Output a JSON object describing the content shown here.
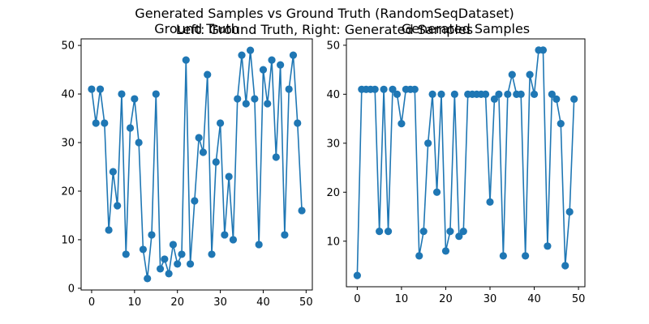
{
  "figure": {
    "title": "Generated Samples vs Ground Truth (RandomSeqDataset)",
    "subtitle": "Left: Ground Truth, Right: Generated Samples"
  },
  "chart_data": [
    {
      "type": "line",
      "title": "Ground Truth",
      "xlabel": "",
      "ylabel": "",
      "xlim": [
        -2.45,
        51.45
      ],
      "ylim": [
        -0.35,
        51.35
      ],
      "xticks": [
        0,
        10,
        20,
        30,
        40,
        50
      ],
      "yticks": [
        0,
        10,
        20,
        30,
        40,
        50
      ],
      "grid": false,
      "marker": "circle",
      "color": "#1f77b4",
      "x": [
        0,
        1,
        2,
        3,
        4,
        5,
        6,
        7,
        8,
        9,
        10,
        11,
        12,
        13,
        14,
        15,
        16,
        17,
        18,
        19,
        20,
        21,
        22,
        23,
        24,
        25,
        26,
        27,
        28,
        29,
        30,
        31,
        32,
        33,
        34,
        35,
        36,
        37,
        38,
        39,
        40,
        41,
        42,
        43,
        44,
        45,
        46,
        47,
        48,
        49
      ],
      "values": [
        41,
        34,
        41,
        34,
        12,
        24,
        17,
        40,
        7,
        33,
        39,
        30,
        8,
        2,
        11,
        40,
        4,
        6,
        3,
        9,
        5,
        7,
        47,
        5,
        18,
        31,
        28,
        44,
        7,
        26,
        34,
        11,
        23,
        10,
        39,
        48,
        38,
        49,
        39,
        9,
        45,
        38,
        47,
        27,
        46,
        11,
        41,
        48,
        34,
        16
      ]
    },
    {
      "type": "line",
      "title": "Generated Samples",
      "xlabel": "",
      "ylabel": "",
      "xlim": [
        -2.45,
        51.45
      ],
      "ylim": [
        0.7,
        51.3
      ],
      "xticks": [
        0,
        10,
        20,
        30,
        40,
        50
      ],
      "yticks": [
        10,
        20,
        30,
        40,
        50
      ],
      "grid": false,
      "marker": "circle",
      "color": "#1f77b4",
      "x": [
        0,
        1,
        2,
        3,
        4,
        5,
        6,
        7,
        8,
        9,
        10,
        11,
        12,
        13,
        14,
        15,
        16,
        17,
        18,
        19,
        20,
        21,
        22,
        23,
        24,
        25,
        26,
        27,
        28,
        29,
        30,
        31,
        32,
        33,
        34,
        35,
        36,
        37,
        38,
        39,
        40,
        41,
        42,
        43,
        44,
        45,
        46,
        47,
        48,
        49
      ],
      "values": [
        3,
        41,
        41,
        41,
        41,
        12,
        41,
        12,
        41,
        40,
        34,
        41,
        41,
        41,
        7,
        12,
        30,
        40,
        20,
        40,
        8,
        12,
        40,
        11,
        12,
        40,
        40,
        40,
        40,
        40,
        18,
        39,
        40,
        7,
        40,
        44,
        40,
        40,
        7,
        44,
        40,
        49,
        49,
        9,
        40,
        39,
        34,
        5,
        16,
        39
      ]
    }
  ]
}
